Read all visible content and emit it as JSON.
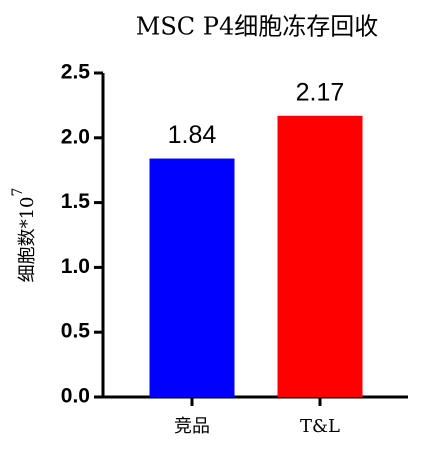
{
  "chart_data": {
    "type": "bar",
    "title": "MSC P4细胞冻存回收",
    "ylabel": "细胞数*10",
    "ylabel_exponent": "7",
    "categories": [
      "竞品",
      "T&L"
    ],
    "values": [
      1.84,
      2.17
    ],
    "colors": [
      "#0000ff",
      "#ff0000"
    ],
    "ylim": [
      0,
      2.5
    ],
    "yticks": [
      {
        "value": 0,
        "label": "0.0"
      },
      0.5,
      {
        "value": 1,
        "label": "1.0"
      },
      1.5,
      {
        "value": 2,
        "label": "2.0"
      },
      2.5
    ],
    "grid": false
  }
}
